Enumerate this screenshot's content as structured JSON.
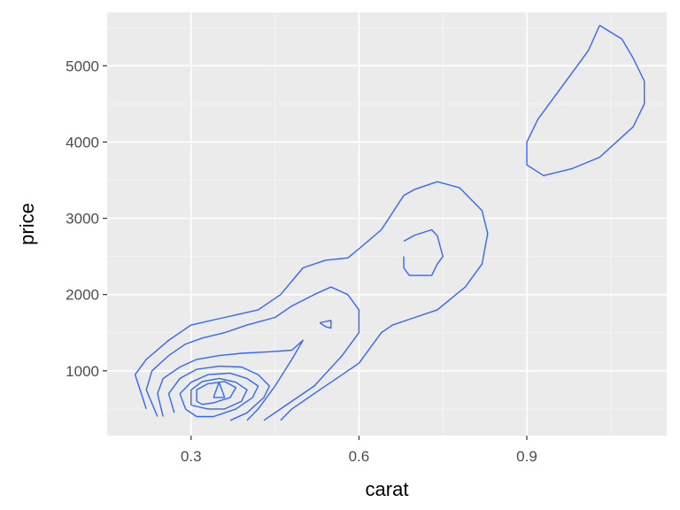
{
  "chart_data": {
    "type": "contour",
    "title": "",
    "xlabel": "carat",
    "ylabel": "price",
    "xlim": [
      0.15,
      1.15
    ],
    "ylim": [
      150,
      5700
    ],
    "x_ticks": [
      0.3,
      0.6,
      0.9
    ],
    "x_tick_labels": [
      "0.3",
      "0.6",
      "0.9"
    ],
    "y_ticks": [
      1000,
      2000,
      3000,
      4000,
      5000
    ],
    "y_tick_labels": [
      "1000",
      "2000",
      "3000",
      "4000",
      "5000"
    ],
    "grid": true,
    "panel_background": "#ebebeb",
    "line_color": "#3366ff",
    "contours": [
      {
        "x": [
          1.03,
          1.07,
          1.09,
          1.11,
          1.11,
          1.09,
          1.03,
          0.98,
          0.93,
          0.9,
          0.9,
          0.92,
          0.95,
          0.98,
          1.01,
          1.03
        ],
        "y": [
          5530,
          5350,
          5100,
          4800,
          4500,
          4200,
          3800,
          3650,
          3560,
          3700,
          4000,
          4300,
          4600,
          4900,
          5200,
          5530
        ]
      },
      {
        "x": [
          0.22,
          0.2,
          0.22,
          0.26,
          0.3,
          0.36,
          0.42,
          0.46,
          0.5,
          0.54,
          0.58,
          0.6,
          0.64,
          0.68,
          0.7,
          0.74,
          0.78,
          0.82,
          0.83,
          0.82,
          0.79,
          0.74,
          0.7,
          0.66,
          0.64,
          0.6,
          0.56,
          0.52,
          0.48,
          0.46
        ],
        "y": [
          500,
          950,
          1150,
          1400,
          1600,
          1700,
          1800,
          2000,
          2350,
          2450,
          2480,
          2600,
          2850,
          3300,
          3380,
          3480,
          3400,
          3100,
          2800,
          2400,
          2100,
          1800,
          1700,
          1600,
          1500,
          1100,
          900,
          700,
          500,
          350
        ]
      },
      {
        "x": [
          0.24,
          0.22,
          0.23,
          0.26,
          0.29,
          0.32,
          0.36,
          0.4,
          0.45,
          0.48,
          0.52,
          0.55,
          0.58,
          0.6,
          0.6,
          0.57,
          0.52,
          0.47,
          0.43
        ],
        "y": [
          400,
          750,
          1000,
          1200,
          1350,
          1430,
          1500,
          1600,
          1700,
          1850,
          2000,
          2100,
          2000,
          1800,
          1500,
          1200,
          800,
          550,
          350
        ]
      },
      {
        "x": [
          0.25,
          0.24,
          0.25,
          0.28,
          0.31,
          0.35,
          0.39,
          0.44,
          0.48,
          0.5,
          0.48,
          0.45,
          0.42,
          0.4
        ],
        "y": [
          400,
          700,
          900,
          1050,
          1150,
          1200,
          1230,
          1250,
          1270,
          1400,
          1150,
          800,
          500,
          350
        ]
      },
      {
        "x": [
          0.27,
          0.26,
          0.28,
          0.31,
          0.35,
          0.39,
          0.42,
          0.44,
          0.43,
          0.4,
          0.37
        ],
        "y": [
          450,
          700,
          900,
          1020,
          1060,
          1050,
          950,
          800,
          650,
          450,
          350
        ]
      },
      {
        "x": [
          0.29,
          0.28,
          0.3,
          0.33,
          0.37,
          0.4,
          0.42,
          0.41,
          0.38,
          0.34,
          0.31,
          0.29
        ],
        "y": [
          500,
          700,
          850,
          950,
          970,
          900,
          800,
          650,
          500,
          400,
          400,
          500
        ]
      },
      {
        "x": [
          0.3,
          0.3,
          0.32,
          0.35,
          0.38,
          0.4,
          0.39,
          0.36,
          0.33,
          0.3
        ],
        "y": [
          550,
          750,
          860,
          900,
          850,
          750,
          600,
          500,
          500,
          550
        ]
      },
      {
        "x": [
          0.31,
          0.31,
          0.33,
          0.36,
          0.38,
          0.37,
          0.34,
          0.32,
          0.31
        ],
        "y": [
          600,
          750,
          830,
          860,
          780,
          650,
          580,
          560,
          600
        ]
      },
      {
        "x": [
          0.34,
          0.35,
          0.36,
          0.34
        ],
        "y": [
          650,
          850,
          650,
          650
        ]
      },
      {
        "x": [
          0.53,
          0.55,
          0.55,
          0.54,
          0.53
        ],
        "y": [
          1630,
          1660,
          1560,
          1580,
          1630
        ]
      },
      {
        "x": [
          0.68,
          0.7,
          0.73,
          0.74,
          0.75,
          0.74,
          0.73,
          0.69,
          0.68,
          0.68
        ],
        "y": [
          2700,
          2780,
          2850,
          2770,
          2500,
          2400,
          2250,
          2250,
          2350,
          2500
        ]
      }
    ]
  }
}
